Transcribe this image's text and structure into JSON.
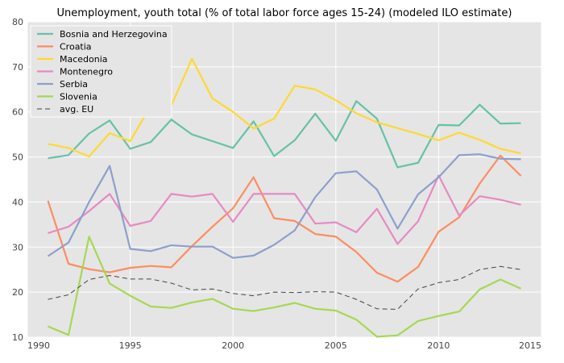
{
  "chart_data": {
    "type": "line",
    "title": "Unemployment, youth total (% of total labor force ages 15-24) (modeled ILO estimate)",
    "xlabel": "",
    "ylabel": "",
    "xlim": [
      1990,
      2015
    ],
    "ylim": [
      10,
      80
    ],
    "x_ticks": [
      1990,
      1995,
      2000,
      2005,
      2010,
      2015
    ],
    "y_ticks": [
      10,
      20,
      30,
      40,
      50,
      60,
      70,
      80
    ],
    "grid": true,
    "legend_position": "top-left",
    "x": [
      1991,
      1992,
      1993,
      1994,
      1995,
      1996,
      1997,
      1998,
      1999,
      2000,
      2001,
      2002,
      2003,
      2004,
      2005,
      2006,
      2007,
      2008,
      2009,
      2010,
      2011,
      2012,
      2013,
      2014
    ],
    "series": [
      {
        "name": "Bosnia and Herzegovina",
        "color": "#66c2a5",
        "style": "solid",
        "values": [
          49.7,
          50.4,
          55.2,
          58.1,
          51.8,
          53.3,
          58.3,
          55.0,
          53.5,
          52.0,
          57.9,
          50.2,
          53.7,
          59.6,
          53.6,
          62.4,
          58.5,
          47.7,
          48.7,
          57.1,
          57.0,
          61.6,
          57.4,
          57.5
        ]
      },
      {
        "name": "Croatia",
        "color": "#fc8d62",
        "style": "solid",
        "values": [
          40.3,
          26.3,
          25.1,
          24.4,
          25.4,
          25.8,
          25.5,
          30.2,
          34.5,
          38.6,
          45.5,
          36.4,
          35.8,
          32.9,
          32.3,
          28.9,
          24.3,
          22.3,
          25.6,
          33.4,
          36.6,
          44.1,
          50.3,
          45.8
        ]
      },
      {
        "name": "Macedonia",
        "color": "#ffd92f",
        "style": "solid",
        "values": [
          52.9,
          52.0,
          50.1,
          55.3,
          53.5,
          61.4,
          61.4,
          71.8,
          63.0,
          60.0,
          56.3,
          58.5,
          65.8,
          65.0,
          62.6,
          59.7,
          57.7,
          56.4,
          55.1,
          53.7,
          55.4,
          53.8,
          51.8,
          50.8
        ]
      },
      {
        "name": "Montenegro",
        "color": "#e78ac3",
        "style": "solid",
        "values": [
          33.1,
          34.5,
          38.0,
          41.8,
          34.7,
          35.8,
          41.8,
          41.2,
          41.8,
          35.6,
          41.8,
          41.8,
          41.8,
          35.2,
          35.5,
          33.3,
          38.5,
          30.7,
          35.7,
          45.9,
          37.0,
          41.3,
          40.5,
          39.4
        ]
      },
      {
        "name": "Serbia",
        "color": "#8da0cb",
        "style": "solid",
        "values": [
          28.0,
          31.0,
          40.0,
          48.0,
          29.6,
          29.1,
          30.4,
          30.1,
          30.1,
          27.6,
          28.1,
          30.5,
          33.7,
          41.1,
          46.4,
          46.8,
          42.8,
          34.1,
          41.7,
          45.5,
          50.4,
          50.6,
          49.6,
          49.5
        ]
      },
      {
        "name": "Slovenia",
        "color": "#a6d854",
        "style": "solid",
        "values": [
          12.4,
          10.5,
          32.3,
          21.9,
          19.2,
          16.8,
          16.5,
          17.7,
          18.5,
          16.3,
          15.8,
          16.6,
          17.6,
          16.3,
          15.9,
          13.9,
          10.1,
          10.4,
          13.6,
          14.7,
          15.7,
          20.6,
          22.8,
          20.8
        ]
      },
      {
        "name": "avg. EU",
        "color": "#444444",
        "style": "dashed",
        "values": [
          18.4,
          19.4,
          22.8,
          23.7,
          22.9,
          22.9,
          22.0,
          20.5,
          20.7,
          19.7,
          19.2,
          20.0,
          19.9,
          20.1,
          20.0,
          18.4,
          16.3,
          16.2,
          20.7,
          22.1,
          22.8,
          25.0,
          25.7,
          25.0
        ]
      }
    ]
  }
}
